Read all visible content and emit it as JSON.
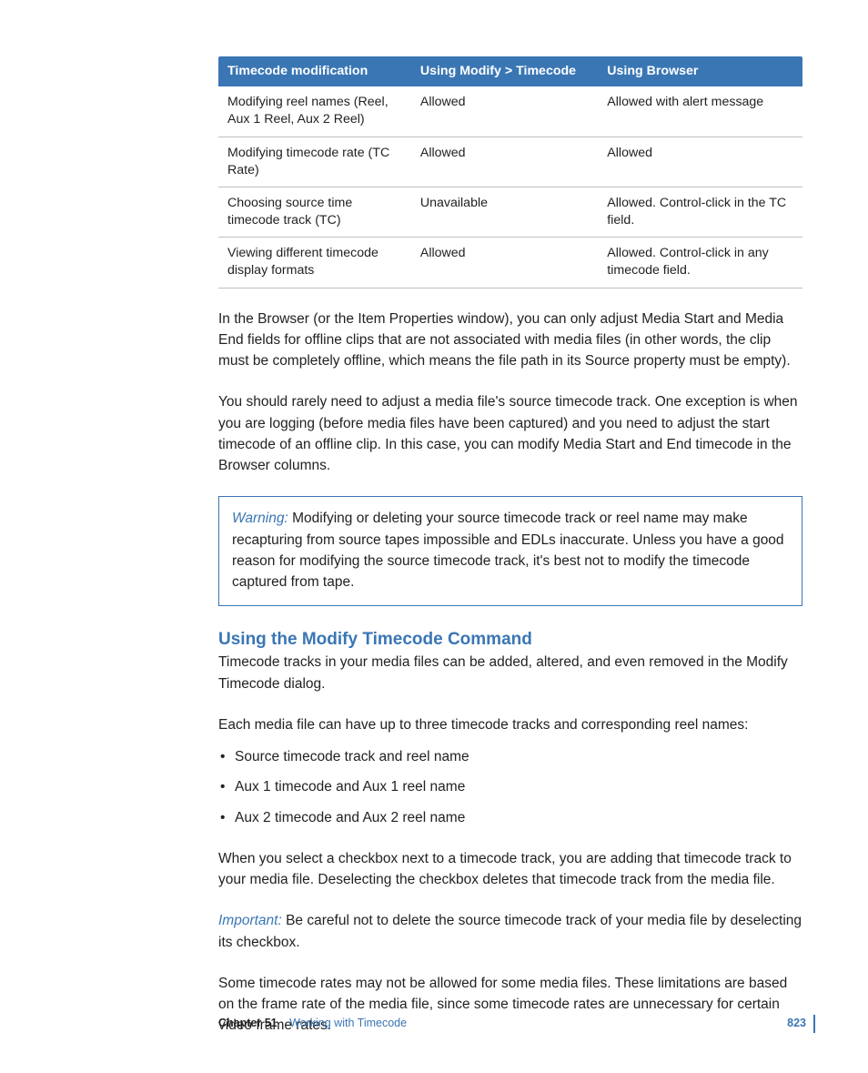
{
  "colors": {
    "accent": "#3a76b4",
    "text": "#222222",
    "tableHeaderBg": "#3a76b4",
    "tableHeaderFg": "#ffffff",
    "rowBorder": "#bfbfbf",
    "pageBg": "#ffffff"
  },
  "table": {
    "headers": [
      "Timecode modification",
      "Using Modify > Timecode",
      "Using Browser"
    ],
    "rows": [
      [
        "Modifying reel names (Reel, Aux 1 Reel, Aux 2 Reel)",
        "Allowed",
        "Allowed with alert message"
      ],
      [
        "Modifying timecode rate (TC Rate)",
        "Allowed",
        "Allowed"
      ],
      [
        "Choosing source time timecode track (TC)",
        "Unavailable",
        "Allowed. Control-click in the TC field."
      ],
      [
        "Viewing different timecode display formats",
        "Allowed",
        "Allowed. Control-click in any timecode field."
      ]
    ],
    "col_widths_pct": [
      33,
      32,
      35
    ],
    "header_fontsize": 14.2,
    "cell_fontsize": 14.2
  },
  "paragraphs": {
    "p1": "In the Browser (or the Item Properties window), you can only adjust Media Start and Media End fields for offline clips that are not associated with media files (in other words, the clip must be completely offline, which means the file path in its Source property must be empty).",
    "p2": "You should rarely need to adjust a media file's source timecode track. One exception is when you are logging (before media files have been captured) and you need to adjust the start timecode of an offline clip. In this case, you can modify Media Start and End timecode in the Browser columns."
  },
  "warning": {
    "label": "Warning:  ",
    "text": "Modifying or deleting your source timecode track or reel name may make recapturing from source tapes impossible and EDLs inaccurate. Unless you have a good reason for modifying the source timecode track, it's best not to modify the timecode captured from tape."
  },
  "section": {
    "title": "Using the Modify Timecode Command",
    "intro": "Timecode tracks in your media files can be added, altered, and even removed in the Modify Timecode dialog.",
    "lead": "Each media file can have up to three timecode tracks and corresponding reel names:",
    "bullets": [
      "Source timecode track and reel name",
      "Aux 1 timecode and Aux 1 reel name",
      "Aux 2 timecode and Aux 2 reel name"
    ],
    "after1": "When you select a checkbox next to a timecode track, you are adding that timecode track to your media file. Deselecting the checkbox deletes that timecode track from the media file.",
    "important_label": "Important:  ",
    "important_text": "Be careful not to delete the source timecode track of your media file by deselecting its checkbox.",
    "after2": "Some timecode rates may not be allowed for some media files. These limitations are based on the frame rate of the media file, since some timecode rates are unnecessary for certain video frame rates."
  },
  "footer": {
    "chapter_num": "Chapter 51",
    "chapter_title": "Working with Timecode",
    "page": "823"
  },
  "typography": {
    "body_fontsize": 15.5,
    "h2_fontsize": 19,
    "footer_fontsize": 12.5
  }
}
